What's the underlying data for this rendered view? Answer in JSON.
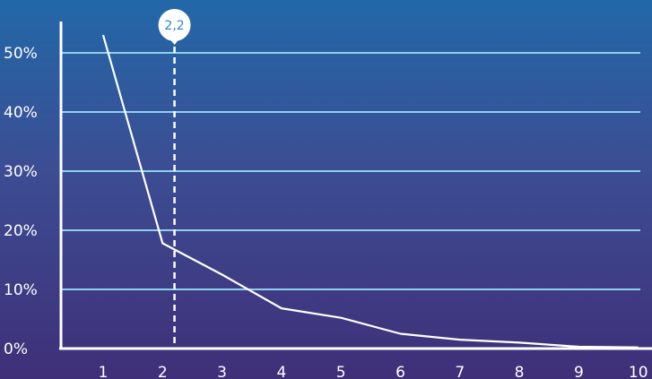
{
  "chart_data": {
    "type": "line",
    "x": [
      1,
      2,
      3,
      4,
      5,
      6,
      7,
      8,
      9,
      10
    ],
    "series": [
      {
        "values": [
          53,
          17.8,
          12.5,
          6.8,
          5.2,
          2.5,
          1.5,
          1.0,
          0.3,
          0.2
        ]
      }
    ],
    "xlim": [
      0.75,
      10
    ],
    "ylim": [
      0,
      55
    ],
    "yticks": [
      0,
      10,
      20,
      30,
      40,
      50
    ],
    "ytick_labels": [
      "0%",
      "10%",
      "20%",
      "30%",
      "40%",
      "50%"
    ],
    "xtick_labels": [
      "1",
      "2",
      "3",
      "4",
      "5",
      "6",
      "7",
      "8",
      "9",
      "10"
    ],
    "grid": true,
    "title": "",
    "xlabel": "",
    "ylabel": "",
    "annotation": {
      "x": 2.2,
      "label": "2,2"
    },
    "colors": {
      "line": "#ffffff",
      "grid": "#8fd0f0",
      "axis": "#ffffff",
      "marker_bubble": "#ffffff",
      "marker_text": "#2a86c8"
    }
  }
}
